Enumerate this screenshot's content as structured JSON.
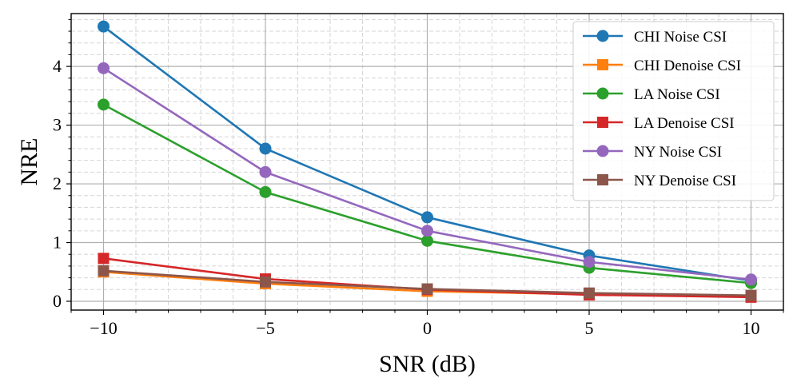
{
  "chart_data": {
    "type": "line",
    "xlabel": "SNR (dB)",
    "ylabel": "NRE",
    "x": [
      -10,
      -5,
      0,
      5,
      10
    ],
    "xlim": [
      -11,
      11
    ],
    "ylim": [
      -0.15,
      4.9
    ],
    "xticks": [
      -10,
      -5,
      0,
      5,
      10
    ],
    "xtick_labels": [
      "−10",
      "−5",
      "0",
      "5",
      "10"
    ],
    "yticks": [
      0,
      1,
      2,
      3,
      4
    ],
    "ytick_labels": [
      "0",
      "1",
      "2",
      "3",
      "4"
    ],
    "x_minor_step": 1,
    "y_minor_step": 0.2,
    "grid": true,
    "legend_position": "top-right",
    "series": [
      {
        "name": "CHI Noise CSI",
        "color": "#1f77b4",
        "marker": "circle",
        "values": [
          4.68,
          2.6,
          1.43,
          0.78,
          0.35
        ]
      },
      {
        "name": "CHI Denoise CSI",
        "color": "#ff7f0e",
        "marker": "square",
        "values": [
          0.5,
          0.3,
          0.17,
          0.12,
          0.08
        ]
      },
      {
        "name": "LA Noise CSI",
        "color": "#2ca02c",
        "marker": "circle",
        "values": [
          3.35,
          1.86,
          1.03,
          0.57,
          0.31
        ]
      },
      {
        "name": "LA Denoise CSI",
        "color": "#d62728",
        "marker": "square",
        "values": [
          0.73,
          0.38,
          0.2,
          0.11,
          0.07
        ]
      },
      {
        "name": "NY Noise CSI",
        "color": "#9467bd",
        "marker": "circle",
        "values": [
          3.97,
          2.2,
          1.2,
          0.67,
          0.37
        ]
      },
      {
        "name": "NY Denoise CSI",
        "color": "#8c564b",
        "marker": "square",
        "values": [
          0.52,
          0.33,
          0.21,
          0.14,
          0.1
        ]
      }
    ]
  }
}
